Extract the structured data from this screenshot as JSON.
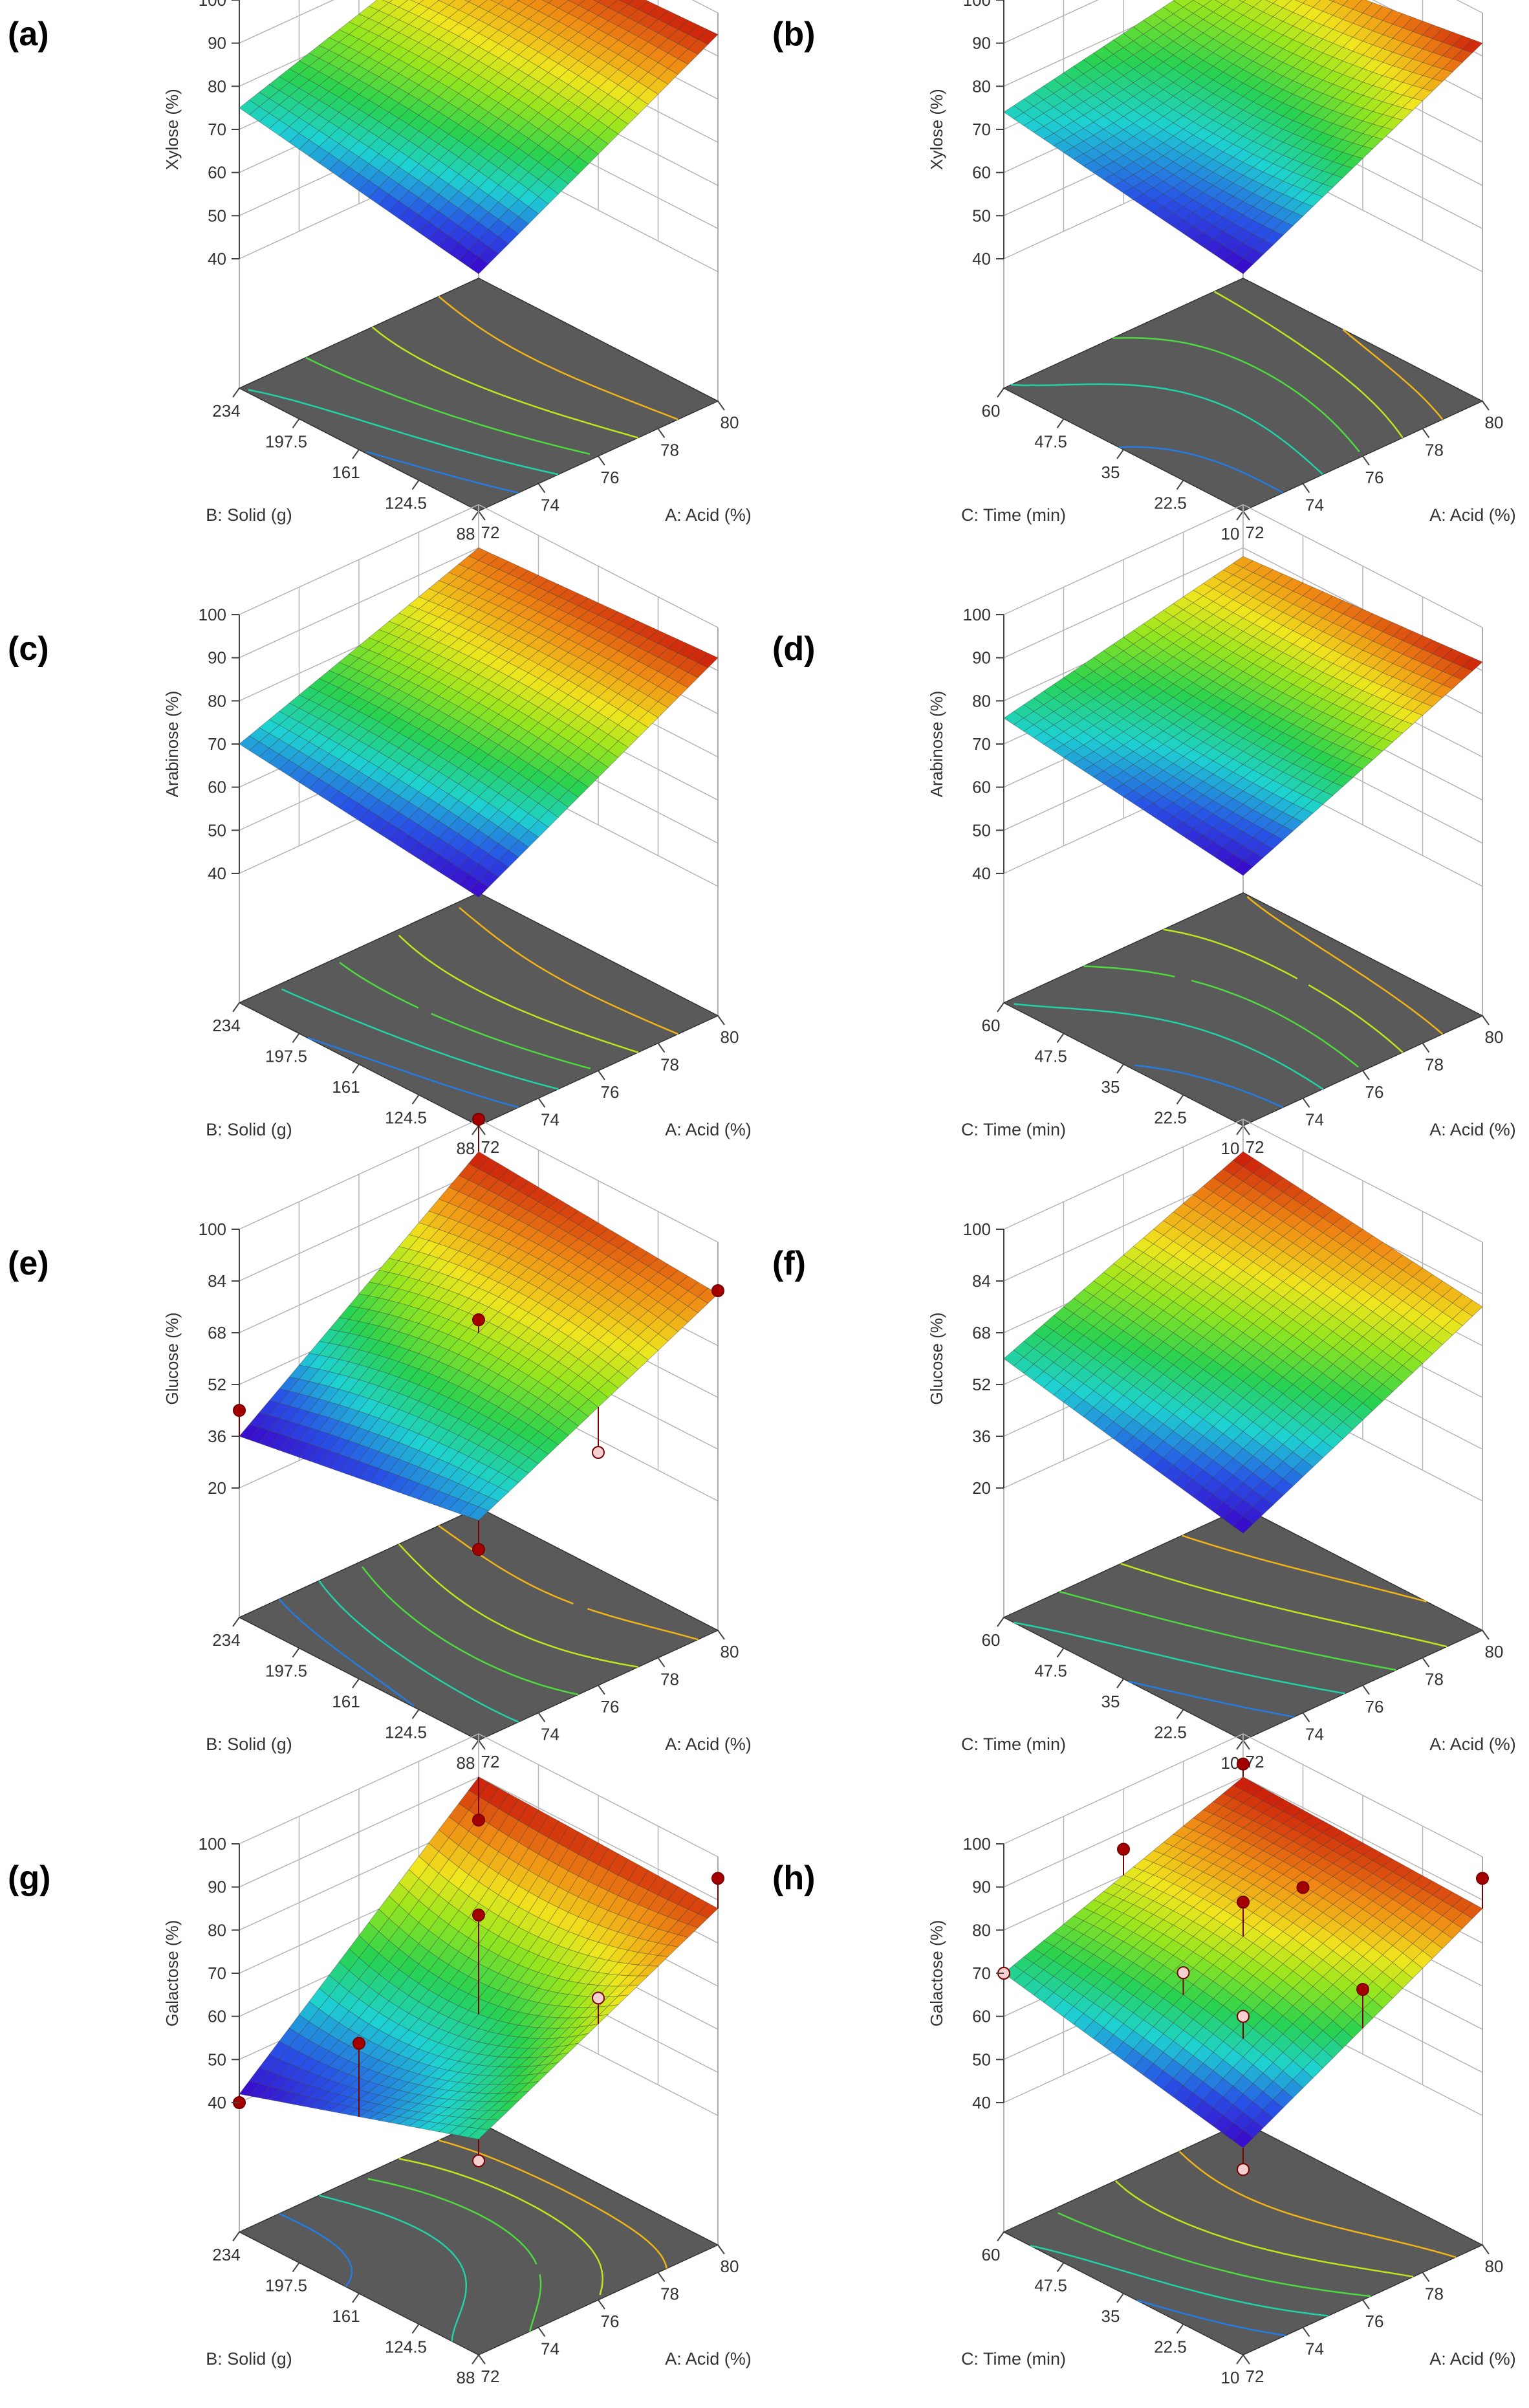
{
  "figure": {
    "panels": [
      {
        "id": "a",
        "label": "(a)",
        "response": "Xylose (%)",
        "factor_b": "B: Solid (g)",
        "factor_a": "A: Acid (%)"
      },
      {
        "id": "b",
        "label": "(b)",
        "response": "Xylose (%)",
        "factor_b": "C: Time (min)",
        "factor_a": "A: Acid (%)"
      },
      {
        "id": "c",
        "label": "(c)",
        "response": "Arabinose (%)",
        "factor_b": "B: Solid (g)",
        "factor_a": "A: Acid (%)"
      },
      {
        "id": "d",
        "label": "(d)",
        "response": "Arabinose (%)",
        "factor_b": "C: Time (min)",
        "factor_a": "A: Acid (%)"
      },
      {
        "id": "e",
        "label": "(e)",
        "response": "Glucose (%)",
        "factor_b": "B: Solid (g)",
        "factor_a": "A: Acid (%)"
      },
      {
        "id": "f",
        "label": "(f)",
        "response": "Glucose (%)",
        "factor_b": "C: Time (min)",
        "factor_a": "A: Acid (%)"
      },
      {
        "id": "g",
        "label": "(g)",
        "response": "Galactose (%)",
        "factor_b": "B: Solid (g)",
        "factor_a": "A: Acid (%)"
      },
      {
        "id": "h",
        "label": "(h)",
        "response": "Galactose (%)",
        "factor_b": "C: Time (min)",
        "factor_a": "A: Acid (%)"
      }
    ]
  },
  "chart_data": [
    {
      "type": "surface",
      "panel": "(a)",
      "zlabel": "Xylose (%)",
      "xlabel": "A: Acid (%)",
      "ylabel": "B: Solid (g)",
      "x_ticks": [
        "72",
        "74",
        "76",
        "78",
        "80"
      ],
      "y_ticks": [
        "88",
        "124.5",
        "161",
        "197.5",
        "234"
      ],
      "z_ticks": [
        "40",
        "50",
        "60",
        "70",
        "80",
        "90",
        "100"
      ],
      "zlim": [
        40,
        100
      ],
      "xlim": [
        72,
        80
      ],
      "ylim": [
        88,
        234
      ],
      "corners": {
        "a_low_b_low": 65,
        "a_high_b_low": 95,
        "a_low_b_high": 75,
        "a_high_b_high": 93
      },
      "center": 84,
      "colorscale": "rainbow",
      "points": []
    },
    {
      "type": "surface",
      "panel": "(b)",
      "zlabel": "Xylose (%)",
      "xlabel": "A: Acid (%)",
      "ylabel": "C: Time (min)",
      "x_ticks": [
        "72",
        "74",
        "76",
        "78",
        "80"
      ],
      "y_ticks": [
        "10",
        "22.5",
        "35",
        "47.5",
        "60"
      ],
      "z_ticks": [
        "40",
        "50",
        "60",
        "70",
        "80",
        "90",
        "100"
      ],
      "zlim": [
        40,
        100
      ],
      "xlim": [
        72,
        80
      ],
      "ylim": [
        10,
        60
      ],
      "corners": {
        "a_low_b_low": 65,
        "a_high_b_low": 93,
        "a_low_b_high": 74,
        "a_high_b_high": 85
      },
      "center": 76,
      "colorscale": "rainbow",
      "points": []
    },
    {
      "type": "surface",
      "panel": "(c)",
      "zlabel": "Arabinose (%)",
      "xlabel": "A: Acid (%)",
      "ylabel": "B: Solid (g)",
      "x_ticks": [
        "72",
        "74",
        "76",
        "78",
        "80"
      ],
      "y_ticks": [
        "88",
        "124.5",
        "161",
        "197.5",
        "234"
      ],
      "z_ticks": [
        "40",
        "50",
        "60",
        "70",
        "80",
        "90",
        "100"
      ],
      "zlim": [
        40,
        100
      ],
      "xlim": [
        72,
        80
      ],
      "ylim": [
        88,
        234
      ],
      "corners": {
        "a_low_b_low": 63,
        "a_high_b_low": 93,
        "a_low_b_high": 70,
        "a_high_b_high": 90
      },
      "center": 81,
      "colorscale": "rainbow",
      "points": []
    },
    {
      "type": "surface",
      "panel": "(d)",
      "zlabel": "Arabinose (%)",
      "xlabel": "A: Acid (%)",
      "ylabel": "C: Time (min)",
      "x_ticks": [
        "72",
        "74",
        "76",
        "78",
        "80"
      ],
      "y_ticks": [
        "10",
        "22.5",
        "35",
        "47.5",
        "60"
      ],
      "z_ticks": [
        "40",
        "50",
        "60",
        "70",
        "80",
        "90",
        "100"
      ],
      "zlim": [
        40,
        100
      ],
      "xlim": [
        72,
        80
      ],
      "ylim": [
        10,
        60
      ],
      "corners": {
        "a_low_b_low": 68,
        "a_high_b_low": 92,
        "a_low_b_high": 76,
        "a_high_b_high": 88
      },
      "center": 79,
      "colorscale": "rainbow",
      "points": []
    },
    {
      "type": "surface",
      "panel": "(e)",
      "zlabel": "Glucose (%)",
      "xlabel": "A: Acid (%)",
      "ylabel": "B: Solid (g)",
      "x_ticks": [
        "72",
        "74",
        "76",
        "78",
        "80"
      ],
      "y_ticks": [
        "88",
        "124.5",
        "161",
        "197.5",
        "234"
      ],
      "z_ticks": [
        "20",
        "36",
        "52",
        "68",
        "84",
        "100"
      ],
      "zlim": [
        20,
        100
      ],
      "xlim": [
        72,
        80
      ],
      "ylim": [
        88,
        234
      ],
      "corners": {
        "a_low_b_low": 48,
        "a_high_b_low": 84,
        "a_low_b_high": 36,
        "a_high_b_high": 90
      },
      "center": 70,
      "colorscale": "rainbow",
      "points": [
        {
          "a": 72,
          "b": 88,
          "z": 39,
          "above": true
        },
        {
          "a": 80,
          "b": 88,
          "z": 85,
          "above": true
        },
        {
          "a": 76,
          "b": 161,
          "z": 74,
          "above": true
        },
        {
          "a": 80,
          "b": 234,
          "z": 100,
          "above": true
        },
        {
          "a": 72,
          "b": 234,
          "z": 44,
          "above": true
        },
        {
          "a": 76,
          "b": 88,
          "z": 52,
          "above": false
        }
      ]
    },
    {
      "type": "surface",
      "panel": "(f)",
      "zlabel": "Glucose (%)",
      "xlabel": "A: Acid (%)",
      "ylabel": "C: Time (min)",
      "x_ticks": [
        "72",
        "74",
        "76",
        "78",
        "80"
      ],
      "y_ticks": [
        "10",
        "22.5",
        "35",
        "47.5",
        "60"
      ],
      "z_ticks": [
        "20",
        "36",
        "52",
        "68",
        "84",
        "100"
      ],
      "zlim": [
        20,
        100
      ],
      "xlim": [
        72,
        80
      ],
      "ylim": [
        10,
        60
      ],
      "corners": {
        "a_low_b_low": 44,
        "a_high_b_low": 80,
        "a_low_b_high": 60,
        "a_high_b_high": 90
      },
      "center": 70,
      "colorscale": "rainbow",
      "points": []
    },
    {
      "type": "surface",
      "panel": "(g)",
      "zlabel": "Galactose (%)",
      "xlabel": "A: Acid (%)",
      "ylabel": "B: Solid (g)",
      "x_ticks": [
        "72",
        "74",
        "76",
        "78",
        "80"
      ],
      "y_ticks": [
        "88",
        "124.5",
        "161",
        "197.5",
        "234"
      ],
      "z_ticks": [
        "40",
        "50",
        "60",
        "70",
        "80",
        "90",
        "100"
      ],
      "zlim": [
        40,
        100
      ],
      "xlim": [
        72,
        80
      ],
      "ylim": [
        88,
        234
      ],
      "corners": {
        "a_low_b_low": 60,
        "a_high_b_low": 88,
        "a_low_b_high": 42,
        "a_high_b_high": 90
      },
      "center": 62,
      "colorscale": "rainbow",
      "points": [
        {
          "a": 72,
          "b": 88,
          "z": 55,
          "above": false
        },
        {
          "a": 80,
          "b": 88,
          "z": 95,
          "above": true
        },
        {
          "a": 76,
          "b": 161,
          "z": 85,
          "above": true
        },
        {
          "a": 72,
          "b": 234,
          "z": 40,
          "above": true
        },
        {
          "a": 80,
          "b": 234,
          "z": 80,
          "above": true
        },
        {
          "a": 76,
          "b": 88,
          "z": 80,
          "above": false
        },
        {
          "a": 72,
          "b": 161,
          "z": 68,
          "above": true
        }
      ]
    },
    {
      "type": "surface",
      "panel": "(h)",
      "zlabel": "Galactose (%)",
      "xlabel": "A: Acid (%)",
      "ylabel": "C: Time (min)",
      "x_ticks": [
        "72",
        "74",
        "76",
        "78",
        "80"
      ],
      "y_ticks": [
        "10",
        "22.5",
        "35",
        "47.5",
        "60"
      ],
      "z_ticks": [
        "40",
        "50",
        "60",
        "70",
        "80",
        "90",
        "100"
      ],
      "zlim": [
        40,
        100
      ],
      "xlim": [
        72,
        80
      ],
      "ylim": [
        10,
        60
      ],
      "corners": {
        "a_low_b_low": 58,
        "a_high_b_low": 88,
        "a_low_b_high": 70,
        "a_high_b_high": 90
      },
      "center": 80,
      "colorscale": "rainbow",
      "points": [
        {
          "a": 72,
          "b": 10,
          "z": 53,
          "above": false
        },
        {
          "a": 80,
          "b": 10,
          "z": 95,
          "above": true
        },
        {
          "a": 76,
          "b": 35,
          "z": 88,
          "above": true
        },
        {
          "a": 80,
          "b": 60,
          "z": 93,
          "above": true
        },
        {
          "a": 72,
          "b": 60,
          "z": 70,
          "above": false
        },
        {
          "a": 78,
          "b": 35,
          "z": 85,
          "above": true
        },
        {
          "a": 74,
          "b": 35,
          "z": 78,
          "above": false
        },
        {
          "a": 76,
          "b": 10,
          "z": 82,
          "above": true
        },
        {
          "a": 76,
          "b": 60,
          "z": 86,
          "above": true
        },
        {
          "a": 74,
          "b": 22.5,
          "z": 75,
          "above": false
        }
      ]
    }
  ]
}
